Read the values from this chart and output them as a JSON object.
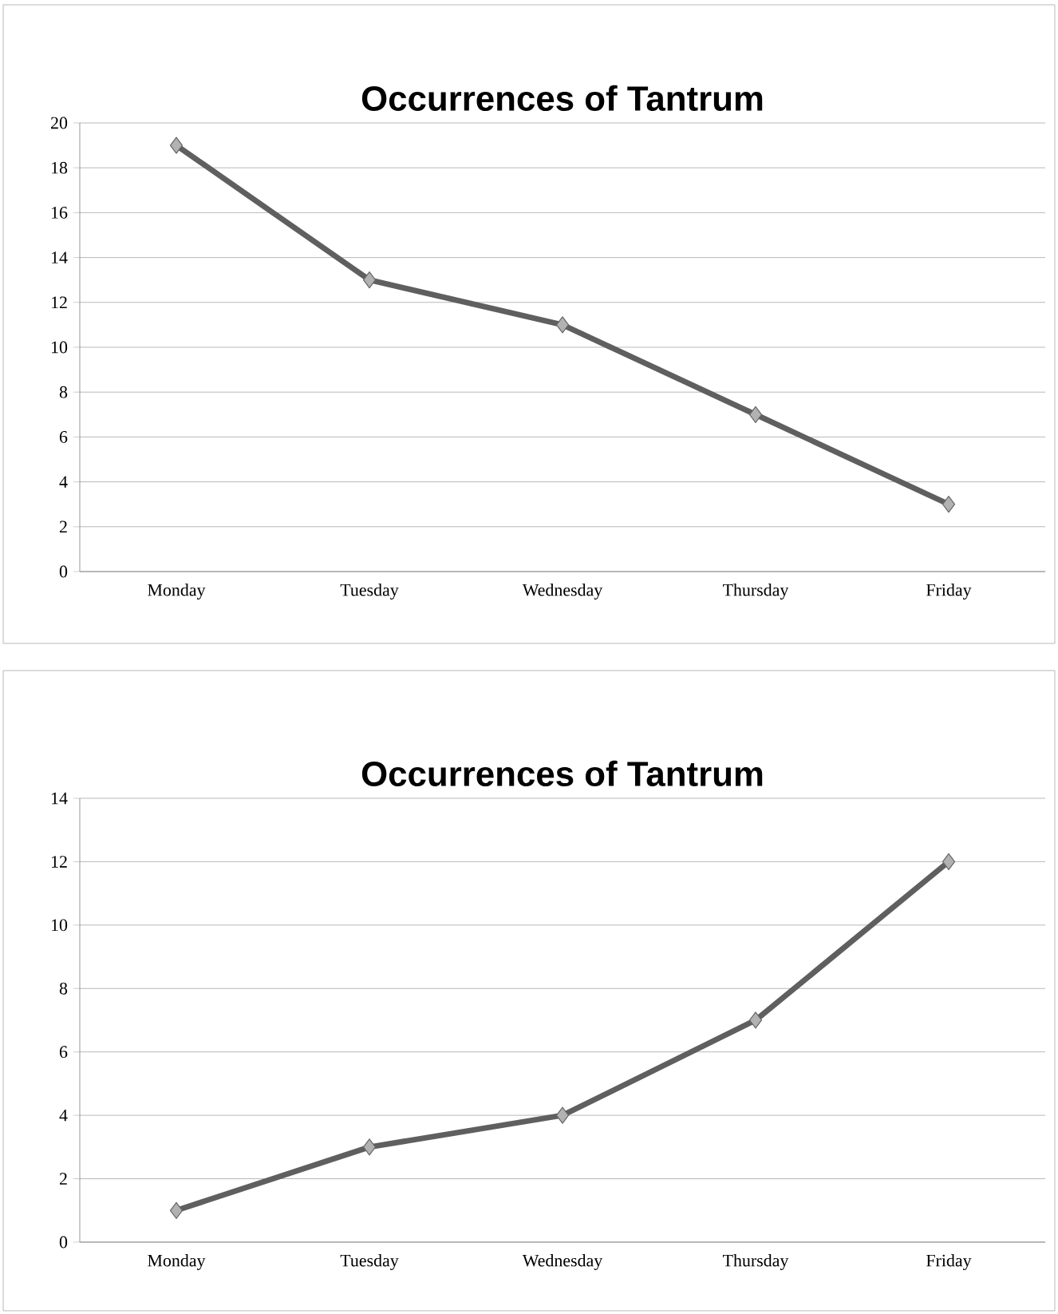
{
  "chart_data": [
    {
      "type": "line",
      "title": "Occurrences of Tantrum",
      "categories": [
        "Monday",
        "Tuesday",
        "Wednesday",
        "Thursday",
        "Friday"
      ],
      "series": [
        {
          "color": "#5f5f5f",
          "values": [
            19,
            13,
            11,
            7,
            3
          ]
        }
      ],
      "ylim": [
        0,
        20
      ],
      "yticks": [
        0,
        2,
        4,
        6,
        8,
        10,
        12,
        14,
        16,
        18,
        20
      ],
      "grid": "y",
      "marker": "diamond"
    },
    {
      "type": "line",
      "title": "Occurrences of Tantrum",
      "categories": [
        "Monday",
        "Tuesday",
        "Wednesday",
        "Thursday",
        "Friday"
      ],
      "series": [
        {
          "color": "#5f5f5f",
          "values": [
            1,
            3,
            4,
            7,
            12
          ]
        }
      ],
      "ylim": [
        0,
        14
      ],
      "yticks": [
        0,
        2,
        4,
        6,
        8,
        10,
        12,
        14
      ],
      "grid": "y",
      "marker": "diamond"
    }
  ]
}
